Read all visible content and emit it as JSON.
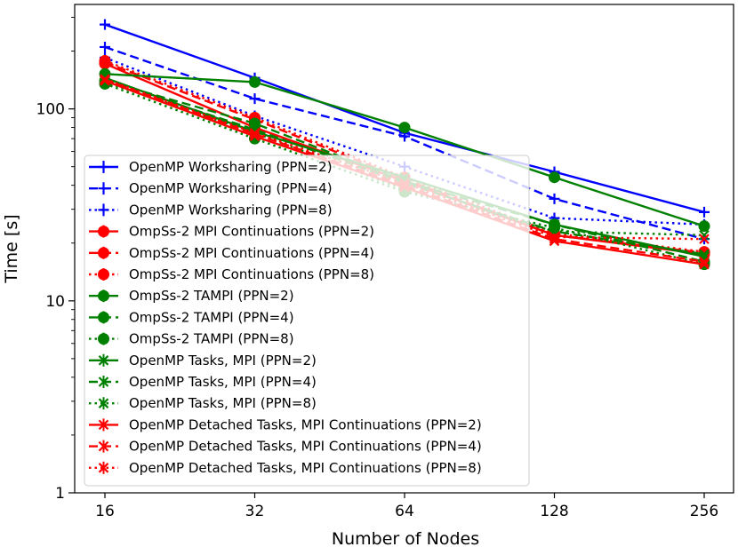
{
  "chart_data": {
    "type": "line",
    "title": "",
    "xlabel": "Number of Nodes",
    "ylabel": "Time [s]",
    "xscale": "log2",
    "yscale": "log10",
    "x": [
      16,
      32,
      64,
      128,
      256
    ],
    "x_tick_labels": [
      "16",
      "32",
      "64",
      "128",
      "256"
    ],
    "ylim": [
      1,
      350
    ],
    "y_ticks": [
      1,
      10,
      100
    ],
    "y_tick_labels": [
      "1",
      "10",
      "100"
    ],
    "grid": false,
    "legend_position": "lower-left",
    "colors": {
      "openmp_ws": "#0000ff",
      "ompss_mpi": "#ff0000",
      "tampi": "#008000",
      "omp_tasks_mpi": "#008000",
      "omp_detached": "#ff0000"
    },
    "series": [
      {
        "name": "OpenMP Worksharing (PPN=2)",
        "color": "#0000ff",
        "dash": "solid",
        "marker": "plus",
        "values": [
          275,
          145,
          75,
          47,
          29
        ]
      },
      {
        "name": "OpenMP Worksharing (PPN=4)",
        "color": "#0000ff",
        "dash": "dashed",
        "marker": "plus",
        "values": [
          210,
          113,
          72,
          34,
          21
        ]
      },
      {
        "name": "OpenMP Worksharing (PPN=8)",
        "color": "#0000ff",
        "dash": "dotted",
        "marker": "plus",
        "values": [
          185,
          92,
          50,
          27,
          25
        ]
      },
      {
        "name": "OmpSs-2 MPI Continuations (PPN=2)",
        "color": "#ff0000",
        "dash": "solid",
        "marker": "circle",
        "values": [
          172,
          80,
          42,
          22,
          17.5
        ]
      },
      {
        "name": "OmpSs-2 MPI Continuations (PPN=4)",
        "color": "#ff0000",
        "dash": "dashed",
        "marker": "circle",
        "values": [
          175,
          88,
          43,
          22,
          17.8
        ]
      },
      {
        "name": "OmpSs-2 MPI Continuations (PPN=8)",
        "color": "#ff0000",
        "dash": "dotted",
        "marker": "circle",
        "values": [
          178,
          90,
          44,
          22.5,
          18
        ]
      },
      {
        "name": "OmpSs-2 TAMPI (PPN=2)",
        "color": "#008000",
        "dash": "solid",
        "marker": "circle",
        "values": [
          152,
          138,
          80,
          44,
          24.5
        ]
      },
      {
        "name": "OmpSs-2 TAMPI (PPN=4)",
        "color": "#008000",
        "dash": "dashed",
        "marker": "circle",
        "values": [
          140,
          84,
          42,
          25,
          16
        ]
      },
      {
        "name": "OmpSs-2 TAMPI (PPN=8)",
        "color": "#008000",
        "dash": "dotted",
        "marker": "circle",
        "values": [
          135,
          70,
          37,
          24,
          15.5
        ]
      },
      {
        "name": "OpenMP Tasks, MPI (PPN=2)",
        "color": "#008000",
        "dash": "solid",
        "marker": "x",
        "values": [
          145,
          76,
          44,
          25,
          17
        ]
      },
      {
        "name": "OpenMP Tasks, MPI (PPN=4)",
        "color": "#008000",
        "dash": "dashed",
        "marker": "x",
        "values": [
          140,
          78,
          41,
          23,
          17.5
        ]
      },
      {
        "name": "OpenMP Tasks, MPI (PPN=8)",
        "color": "#008000",
        "dash": "dotted",
        "marker": "x",
        "values": [
          138,
          75,
          38,
          23,
          22
        ]
      },
      {
        "name": "OpenMP Detached Tasks, MPI Continuations (PPN=2)",
        "color": "#ff0000",
        "dash": "solid",
        "marker": "x",
        "values": [
          140,
          72,
          39,
          20.5,
          15.5
        ]
      },
      {
        "name": "OpenMP Detached Tasks, MPI Continuations (PPN=4)",
        "color": "#ff0000",
        "dash": "dashed",
        "marker": "x",
        "values": [
          142,
          74,
          40,
          21,
          16
        ]
      },
      {
        "name": "OpenMP Detached Tasks, MPI Continuations (PPN=8)",
        "color": "#ff0000",
        "dash": "dotted",
        "marker": "x",
        "values": [
          143,
          75,
          41,
          21.5,
          21
        ]
      }
    ]
  }
}
